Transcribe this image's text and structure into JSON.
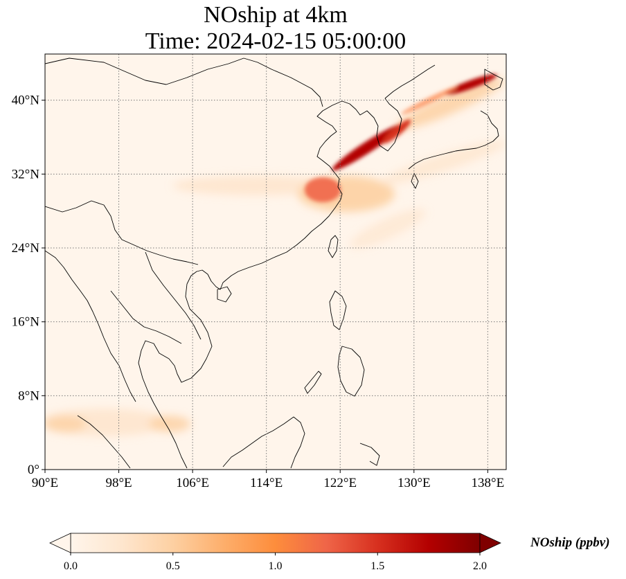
{
  "title": {
    "line1": "NOship at 4km",
    "line2": "Time: 2024-02-15 05:00:00"
  },
  "map": {
    "lon_range": [
      90,
      140
    ],
    "lat_range": [
      0,
      45
    ],
    "lon_ticks": [
      {
        "value": 90,
        "label": "90°E"
      },
      {
        "value": 98,
        "label": "98°E"
      },
      {
        "value": 106,
        "label": "106°E"
      },
      {
        "value": 114,
        "label": "114°E"
      },
      {
        "value": 122,
        "label": "122°E"
      },
      {
        "value": 130,
        "label": "130°E"
      },
      {
        "value": 138,
        "label": "138°E"
      }
    ],
    "lat_ticks": [
      {
        "value": 0,
        "label": "0°"
      },
      {
        "value": 8,
        "label": "8°N"
      },
      {
        "value": 16,
        "label": "16°N"
      },
      {
        "value": 24,
        "label": "24°N"
      },
      {
        "value": 32,
        "label": "32°N"
      },
      {
        "value": 40,
        "label": "40°N"
      }
    ],
    "gridlines": true,
    "background_color": "#fff5eb",
    "coastline_color": "#000000"
  },
  "colorbar": {
    "label": "NOship (ppbv)",
    "colormap": "OrRd",
    "range": [
      0.0,
      2.0
    ],
    "extend": "both",
    "ticks": [
      {
        "value": 0.0,
        "label": "0.0"
      },
      {
        "value": 0.5,
        "label": "0.5"
      },
      {
        "value": 1.0,
        "label": "1.0"
      },
      {
        "value": 1.5,
        "label": "1.5"
      },
      {
        "value": 2.0,
        "label": "2.0"
      }
    ],
    "colors": [
      "#fff5eb",
      "#fee6ce",
      "#fdd0a2",
      "#fdae6b",
      "#fd8d3c",
      "#f16913",
      "#d94801",
      "#a63603",
      "#7f0000"
    ]
  }
}
